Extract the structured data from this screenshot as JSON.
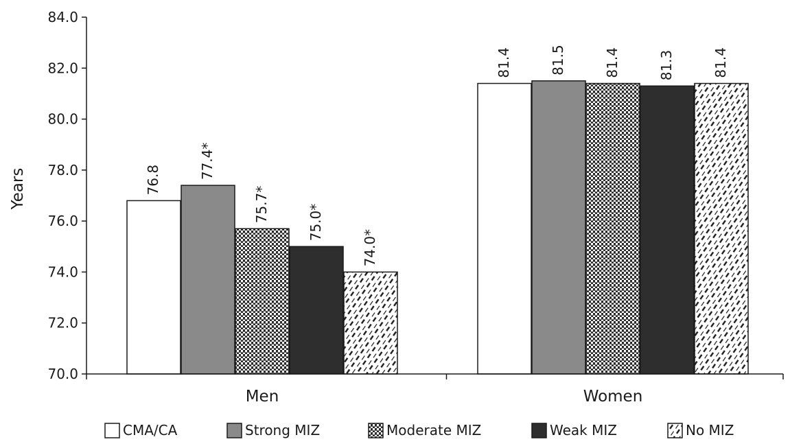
{
  "chart_data": {
    "type": "bar",
    "ylabel": "Years",
    "ylim": [
      70,
      84
    ],
    "yticks": [
      "70.0",
      "72.0",
      "74.0",
      "76.0",
      "78.0",
      "80.0",
      "82.0",
      "84.0"
    ],
    "categories": [
      "Men",
      "Women"
    ],
    "series": [
      {
        "name": "CMA/CA",
        "values": [
          76.8,
          81.4
        ],
        "labels": [
          "76.8",
          "81.4"
        ],
        "pattern": "white"
      },
      {
        "name": "Strong MIZ",
        "values": [
          77.4,
          81.5
        ],
        "labels": [
          "77.4*",
          "81.5"
        ],
        "pattern": "gray"
      },
      {
        "name": "Moderate MIZ",
        "values": [
          75.7,
          81.4
        ],
        "labels": [
          "75.7*",
          "81.4"
        ],
        "pattern": "grid"
      },
      {
        "name": "Weak MIZ",
        "values": [
          75.0,
          81.3
        ],
        "labels": [
          "75.0*",
          "81.3"
        ],
        "pattern": "black"
      },
      {
        "name": "No MIZ",
        "values": [
          74.0,
          81.4
        ],
        "labels": [
          "74.0*",
          "81.4"
        ],
        "pattern": "hatch"
      }
    ],
    "legend_position": "bottom",
    "grid": false
  }
}
